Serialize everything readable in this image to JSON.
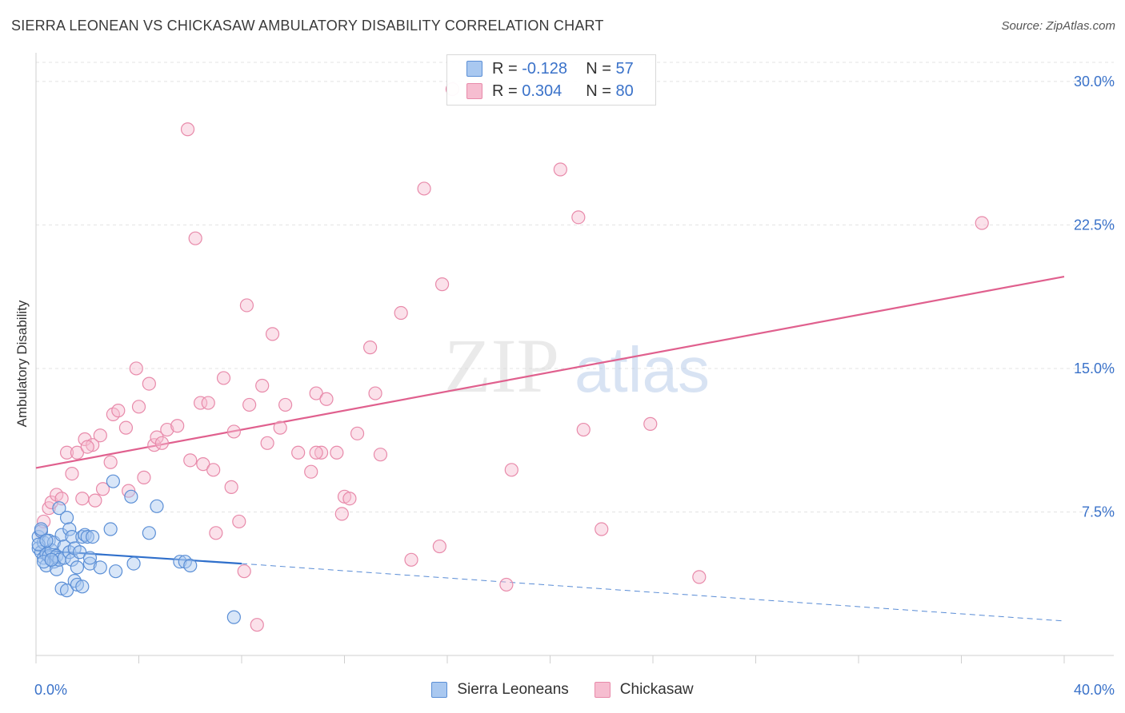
{
  "title": "SIERRA LEONEAN VS CHICKASAW AMBULATORY DISABILITY CORRELATION CHART",
  "source": "Source: ZipAtlas.com",
  "watermark": {
    "part1": "ZIP",
    "part2": "atlas"
  },
  "legend": {
    "rows": [
      {
        "r_label": "R =",
        "r_value": "-0.128",
        "n_label": "N =",
        "n_value": "57"
      },
      {
        "r_label": "R =",
        "r_value": "0.304",
        "n_label": "N =",
        "n_value": "80"
      }
    ]
  },
  "colors": {
    "blue_fill": "#a9c8f0",
    "blue_stroke": "#5b8fd6",
    "blue_line": "#2f6fcb",
    "pink_fill": "#f6bdd0",
    "pink_stroke": "#e88aaa",
    "pink_line": "#e0608e",
    "tick_label": "#3a72c9",
    "grid": "#e3e3e3"
  },
  "chart_data": {
    "type": "scatter",
    "title": "SIERRA LEONEAN VS CHICKASAW AMBULATORY DISABILITY CORRELATION CHART",
    "xlabel": "",
    "ylabel": "Ambulatory Disability",
    "xlim": [
      0,
      40
    ],
    "ylim": [
      0,
      31.5
    ],
    "x_tick_labels": [
      "0.0%",
      "40.0%"
    ],
    "y_ticks": [
      7.5,
      15.0,
      22.5,
      30.0
    ],
    "y_tick_labels": [
      "7.5%",
      "15.0%",
      "22.5%",
      "30.0%"
    ],
    "legend_position": "top-center",
    "grid": true,
    "series": [
      {
        "name": "Sierra Leoneans",
        "color": "#5b8fd6",
        "trend": {
          "x0": 0,
          "y0": 5.5,
          "x1": 8,
          "y1": 4.8,
          "dashed_to_x": 40,
          "dashed_to_y": 1.8
        },
        "points": [
          [
            0.1,
            6.2
          ],
          [
            0.1,
            5.6
          ],
          [
            0.2,
            6.5
          ],
          [
            0.2,
            5.4
          ],
          [
            0.3,
            5.9
          ],
          [
            0.3,
            5.1
          ],
          [
            0.4,
            4.7
          ],
          [
            0.4,
            5.3
          ],
          [
            0.5,
            6.0
          ],
          [
            0.5,
            5.2
          ],
          [
            0.6,
            5.0
          ],
          [
            0.6,
            5.5
          ],
          [
            0.7,
            5.9
          ],
          [
            0.7,
            4.9
          ],
          [
            0.8,
            4.5
          ],
          [
            0.8,
            5.2
          ],
          [
            0.9,
            7.7
          ],
          [
            0.9,
            5.0
          ],
          [
            1.0,
            6.3
          ],
          [
            1.0,
            3.5
          ],
          [
            1.1,
            5.1
          ],
          [
            1.1,
            5.7
          ],
          [
            1.2,
            7.2
          ],
          [
            1.2,
            3.4
          ],
          [
            1.3,
            6.6
          ],
          [
            1.3,
            5.4
          ],
          [
            1.4,
            6.2
          ],
          [
            1.4,
            5.0
          ],
          [
            1.5,
            3.9
          ],
          [
            1.5,
            5.6
          ],
          [
            1.6,
            3.7
          ],
          [
            1.6,
            4.6
          ],
          [
            1.7,
            5.4
          ],
          [
            1.8,
            3.6
          ],
          [
            1.8,
            6.2
          ],
          [
            1.9,
            6.3
          ],
          [
            2.0,
            6.2
          ],
          [
            2.1,
            4.8
          ],
          [
            2.1,
            5.1
          ],
          [
            2.2,
            6.2
          ],
          [
            2.5,
            4.6
          ],
          [
            2.9,
            6.6
          ],
          [
            3.1,
            4.4
          ],
          [
            3.0,
            9.1
          ],
          [
            3.7,
            8.3
          ],
          [
            3.8,
            4.8
          ],
          [
            4.4,
            6.4
          ],
          [
            4.7,
            7.8
          ],
          [
            5.6,
            4.9
          ],
          [
            5.8,
            4.9
          ],
          [
            6.0,
            4.7
          ],
          [
            7.7,
            2.0
          ],
          [
            0.1,
            5.8
          ],
          [
            0.2,
            6.6
          ],
          [
            0.3,
            4.9
          ],
          [
            0.6,
            5.0
          ],
          [
            0.4,
            6.0
          ]
        ]
      },
      {
        "name": "Chickasaw",
        "color": "#e88aaa",
        "trend": {
          "x0": 0,
          "y0": 9.8,
          "x1": 40,
          "y1": 19.8
        },
        "points": [
          [
            0.2,
            6.5
          ],
          [
            0.3,
            7.0
          ],
          [
            0.5,
            7.7
          ],
          [
            0.6,
            8.0
          ],
          [
            0.8,
            8.4
          ],
          [
            1.0,
            8.2
          ],
          [
            1.2,
            10.6
          ],
          [
            1.4,
            9.5
          ],
          [
            1.6,
            10.6
          ],
          [
            1.8,
            8.2
          ],
          [
            1.9,
            11.3
          ],
          [
            2.2,
            11.0
          ],
          [
            2.3,
            8.1
          ],
          [
            2.5,
            11.5
          ],
          [
            2.6,
            8.7
          ],
          [
            2.9,
            10.1
          ],
          [
            3.0,
            12.6
          ],
          [
            3.2,
            12.8
          ],
          [
            3.5,
            11.9
          ],
          [
            3.6,
            8.6
          ],
          [
            3.9,
            15.0
          ],
          [
            4.0,
            13.0
          ],
          [
            4.2,
            9.3
          ],
          [
            4.4,
            14.2
          ],
          [
            4.6,
            11.0
          ],
          [
            4.7,
            11.4
          ],
          [
            4.9,
            11.1
          ],
          [
            5.1,
            11.8
          ],
          [
            5.5,
            12.0
          ],
          [
            5.9,
            27.5
          ],
          [
            6.0,
            10.2
          ],
          [
            6.2,
            21.8
          ],
          [
            6.4,
            13.2
          ],
          [
            6.5,
            10.0
          ],
          [
            6.7,
            13.2
          ],
          [
            6.9,
            9.7
          ],
          [
            7.0,
            6.4
          ],
          [
            7.3,
            14.5
          ],
          [
            7.6,
            8.8
          ],
          [
            7.7,
            11.7
          ],
          [
            7.9,
            7.0
          ],
          [
            8.1,
            4.4
          ],
          [
            8.2,
            18.3
          ],
          [
            8.3,
            13.1
          ],
          [
            8.6,
            1.6
          ],
          [
            8.8,
            14.1
          ],
          [
            9.0,
            11.1
          ],
          [
            9.2,
            16.8
          ],
          [
            9.5,
            11.9
          ],
          [
            9.7,
            13.1
          ],
          [
            10.2,
            10.6
          ],
          [
            10.7,
            9.6
          ],
          [
            10.9,
            13.7
          ],
          [
            11.1,
            10.6
          ],
          [
            11.3,
            13.4
          ],
          [
            11.7,
            10.6
          ],
          [
            11.9,
            7.4
          ],
          [
            12.0,
            8.3
          ],
          [
            12.2,
            8.2
          ],
          [
            12.5,
            11.6
          ],
          [
            13.0,
            16.1
          ],
          [
            13.2,
            13.7
          ],
          [
            13.4,
            10.5
          ],
          [
            14.2,
            17.9
          ],
          [
            14.6,
            5.0
          ],
          [
            15.1,
            24.4
          ],
          [
            15.7,
            5.7
          ],
          [
            15.8,
            19.4
          ],
          [
            16.2,
            29.6
          ],
          [
            18.3,
            3.7
          ],
          [
            18.5,
            9.7
          ],
          [
            20.4,
            25.4
          ],
          [
            21.1,
            22.9
          ],
          [
            21.3,
            11.8
          ],
          [
            22.0,
            6.6
          ],
          [
            23.9,
            12.1
          ],
          [
            25.8,
            4.1
          ],
          [
            36.8,
            22.6
          ],
          [
            10.9,
            10.6
          ],
          [
            2.0,
            10.9
          ]
        ]
      }
    ]
  },
  "bottom_legend": {
    "items": [
      "Sierra Leoneans",
      "Chickasaw"
    ]
  }
}
